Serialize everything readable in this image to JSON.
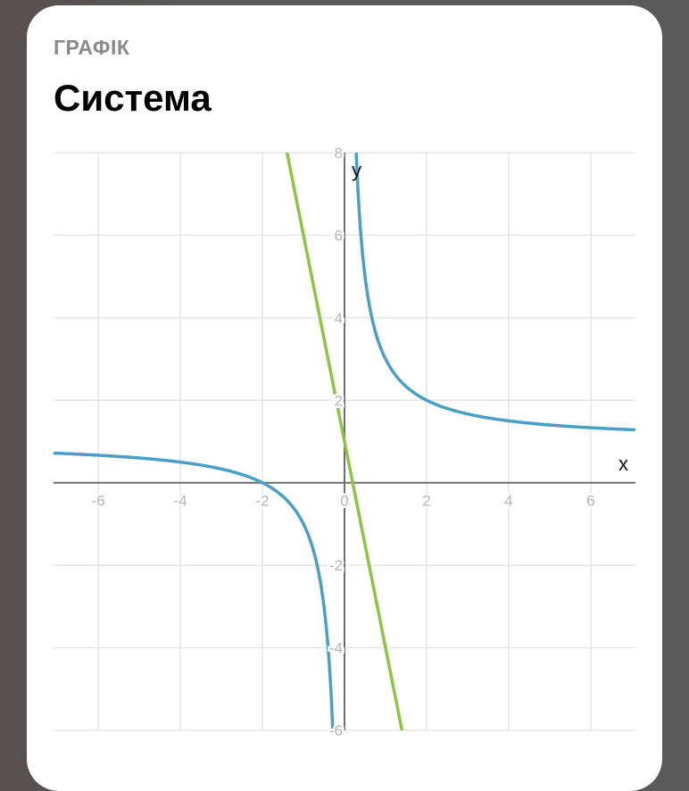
{
  "header": {
    "eyebrow": "ГРАФІК",
    "title": "Система"
  },
  "chart_data": {
    "type": "line",
    "title": "",
    "xlabel": "x",
    "ylabel": "y",
    "xlim": [
      -7.09,
      7.09
    ],
    "ylim": [
      -6,
      8
    ],
    "grid": true,
    "x_ticks": [
      -6,
      -4,
      -2,
      0,
      2,
      4,
      6
    ],
    "y_ticks": [
      -6,
      -4,
      -2,
      2,
      4,
      6,
      8
    ],
    "series": [
      {
        "function": "y = 1 + 2/x",
        "color": "#4a9fc6"
      },
      {
        "function": "y = 1 - 5x",
        "color": "#8cc540"
      }
    ]
  }
}
